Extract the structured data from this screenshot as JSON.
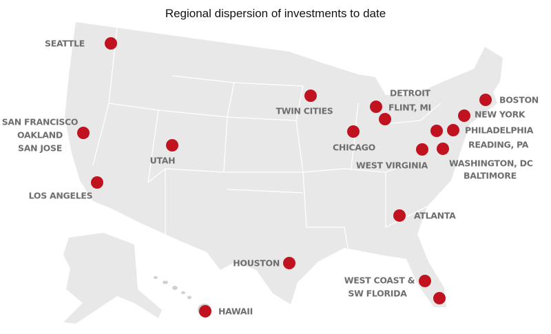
{
  "title": "Regional dispersion of investments to date",
  "locations": [
    [
      "SEATTLE"
    ],
    [
      "SAN FRANCISCO",
      "OAKLAND",
      "SAN JOSE"
    ],
    [
      "LOS ANGELES"
    ],
    [
      "UTAH"
    ],
    [
      "TWIN CITIES"
    ],
    [
      "DETROIT"
    ],
    [
      "FLINT, MI"
    ],
    [
      "CHICAGO"
    ],
    [
      "BOSTON"
    ],
    [
      "NEW YORK"
    ],
    [
      "PHILADELPHIA"
    ],
    [
      "READING, PA"
    ],
    [
      "WEST VIRGINIA"
    ],
    [
      "WASHINGTON, DC"
    ],
    [
      "BALTIMORE"
    ],
    [
      "ATLANTA"
    ],
    [
      "HOUSTON"
    ],
    [
      "WEST COAST &",
      "SW FLORIDA"
    ],
    [
      "HAWAII"
    ]
  ]
}
